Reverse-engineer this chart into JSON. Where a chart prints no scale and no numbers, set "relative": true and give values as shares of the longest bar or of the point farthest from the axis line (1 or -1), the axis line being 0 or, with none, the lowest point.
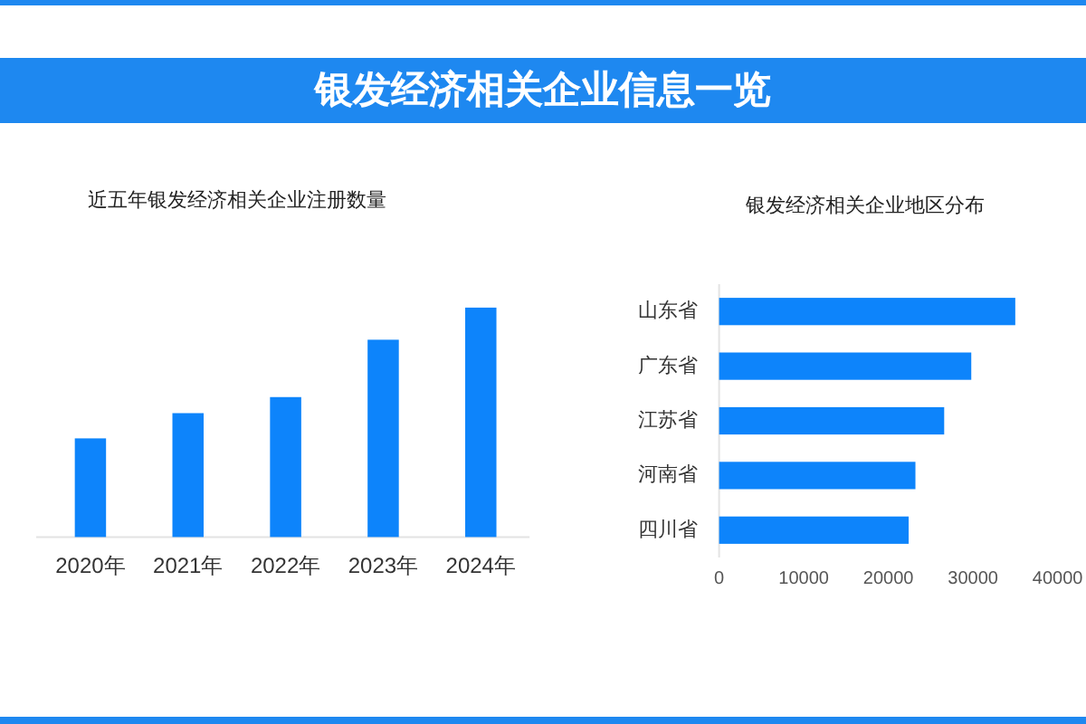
{
  "chart_data": [
    {
      "type": "bar",
      "title": "银发经济相关企业信息一览",
      "subtitle": "近五年银发经济相关企业注册数量",
      "categories": [
        "2020年",
        "2021年",
        "2022年",
        "2023年",
        "2024年"
      ],
      "values": [
        0.43,
        0.54,
        0.61,
        0.86,
        1
      ],
      "color": "#0d84fb",
      "relative": true
    },
    {
      "type": "bar",
      "orientation": "horizontal",
      "title": "银发经济相关企业地区分布",
      "categories": [
        "山东省",
        "广东省",
        "江苏省",
        "河南省",
        "四川省"
      ],
      "values": [
        35000,
        29800,
        26600,
        23200,
        22400
      ],
      "color": "#0d84fb",
      "xlim": [
        0,
        40000
      ],
      "xticks": [
        0,
        10000,
        20000,
        30000,
        40000
      ]
    }
  ]
}
